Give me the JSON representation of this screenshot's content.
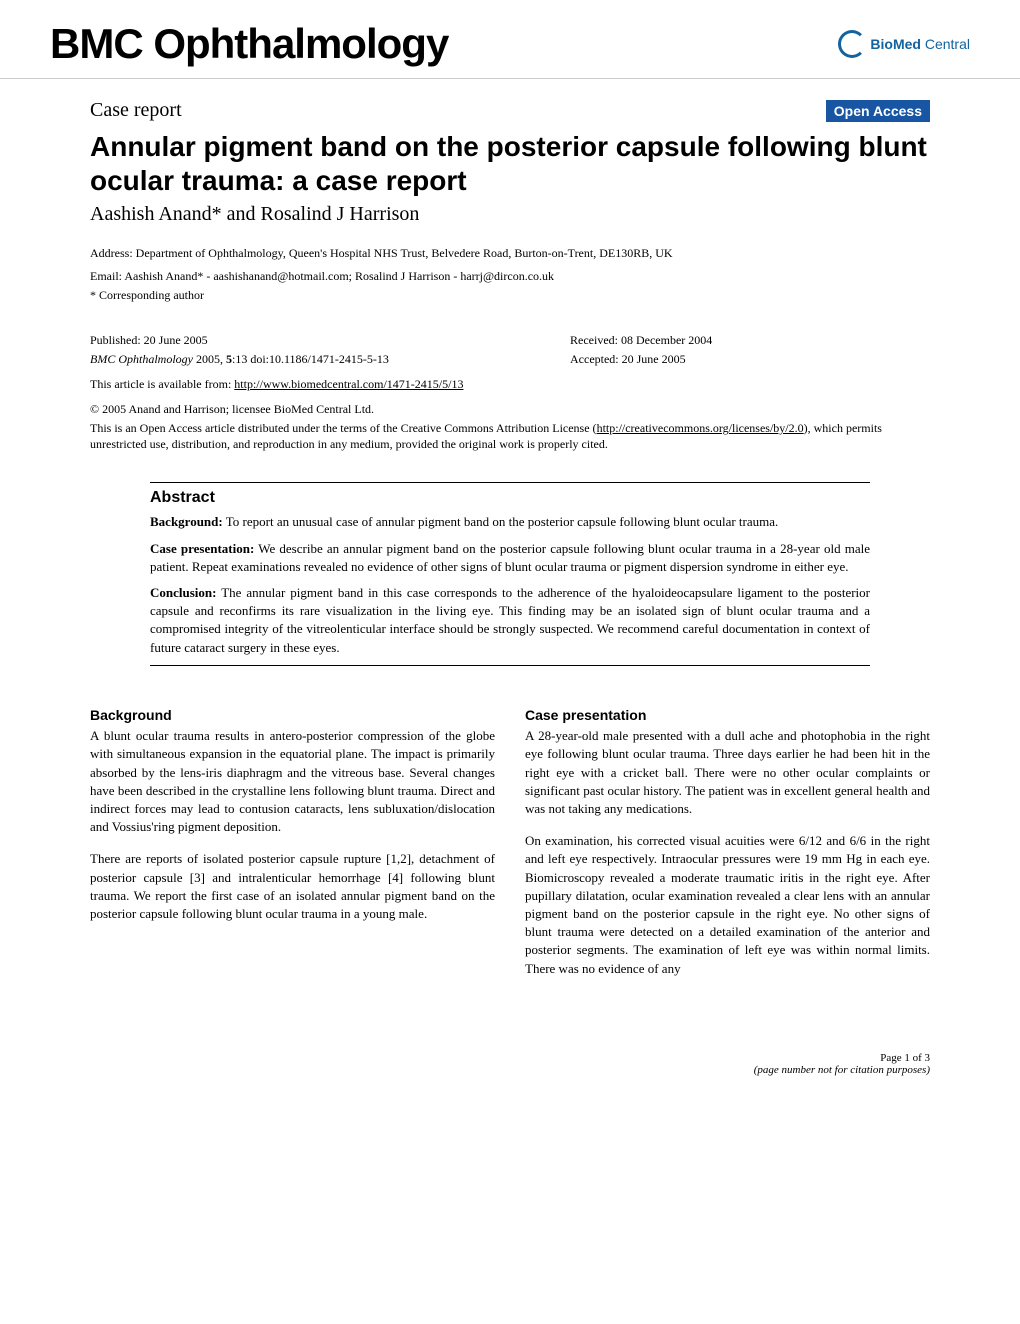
{
  "header": {
    "journal_title": "BMC Ophthalmology",
    "logo_text_bold": "BioMed",
    "logo_text_normal": " Central",
    "logo_circle_color": "#14639f"
  },
  "article": {
    "type": "Case report",
    "open_access_label": "Open Access",
    "open_access_bg": "#1856a3",
    "title": "Annular pigment band on the posterior capsule following blunt ocular trauma: a case report",
    "authors": "Aashish Anand* and Rosalind J Harrison",
    "address": "Address: Department of Ophthalmology, Queen's Hospital NHS Trust, Belvedere Road, Burton-on-Trent, DE130RB, UK",
    "email": "Email: Aashish Anand* - aashishanand@hotmail.com; Rosalind J Harrison - harrj@dircon.co.uk",
    "corresponding": "* Corresponding author"
  },
  "publication": {
    "published": "Published: 20 June 2005",
    "received": "Received: 08 December 2004",
    "accepted": "Accepted: 20 June 2005",
    "citation_journal": "BMC Ophthalmology",
    "citation_year_vol": " 2005, ",
    "citation_bold_vol": "5",
    "citation_rest": ":13    doi:10.1186/1471-2415-5-13",
    "article_link_prefix": "This article is available from: ",
    "article_link_url": "http://www.biomedcentral.com/1471-2415/5/13",
    "copyright": "© 2005 Anand and Harrison; licensee BioMed Central Ltd.",
    "license_prefix": "This is an Open Access article distributed under the terms of the Creative Commons Attribution License (",
    "license_url": "http://creativecommons.org/licenses/by/2.0",
    "license_suffix": "), which permits unrestricted use, distribution, and reproduction in any medium, provided the original work is properly cited."
  },
  "abstract": {
    "title": "Abstract",
    "background_label": "Background:",
    "background_text": " To report an unusual case of annular pigment band on the posterior capsule following blunt ocular trauma.",
    "case_label": "Case presentation:",
    "case_text": " We describe an annular pigment band on the posterior capsule following blunt ocular trauma in a 28-year old male patient. Repeat examinations revealed no evidence of other signs of blunt ocular trauma or pigment dispersion syndrome in either eye.",
    "conclusion_label": "Conclusion:",
    "conclusion_text": " The annular pigment band in this case corresponds to the adherence of the hyaloideocapsulare ligament to the posterior capsule and reconfirms its rare visualization in the living eye. This finding may be an isolated sign of blunt ocular trauma and a compromised integrity of the vitreolenticular interface should be strongly suspected. We recommend careful documentation in context of future cataract surgery in these eyes."
  },
  "body": {
    "left": {
      "section_title": "Background",
      "para1": "A blunt ocular trauma results in antero-posterior compression of the globe with simultaneous expansion in the equatorial plane. The impact is primarily absorbed by the lens-iris diaphragm and the vitreous base. Several changes have been described in the crystalline lens following blunt trauma. Direct and indirect forces may lead to contusion cataracts, lens subluxation/dislocation and Vossius'ring pigment deposition.",
      "para2": "There are reports of isolated posterior capsule rupture [1,2], detachment of posterior capsule [3] and intralenticular hemorrhage [4] following blunt trauma. We report the first case of an isolated annular pigment band on the posterior capsule following blunt ocular trauma in a young male."
    },
    "right": {
      "section_title": "Case presentation",
      "para1": "A 28-year-old male presented with a dull ache and photophobia in the right eye following blunt ocular trauma. Three days earlier he had been hit in the right eye with a cricket ball. There were no other ocular complaints or significant past ocular history. The patient was in excellent general health and was not taking any medications.",
      "para2": "On examination, his corrected visual acuities were 6/12 and 6/6 in the right and left eye respectively. Intraocular pressures were 19 mm Hg in each eye. Biomicroscopy revealed a moderate traumatic iritis in the right eye. After pupillary dilatation, ocular examination revealed a clear lens with an annular pigment band on the posterior capsule in the right eye. No other signs of blunt trauma were detected on a detailed examination of the anterior and posterior segments. The examination of left eye was within normal limits. There was no evidence of any"
    }
  },
  "footer": {
    "page": "Page 1 of 3",
    "note": "(page number not for citation purposes)"
  }
}
